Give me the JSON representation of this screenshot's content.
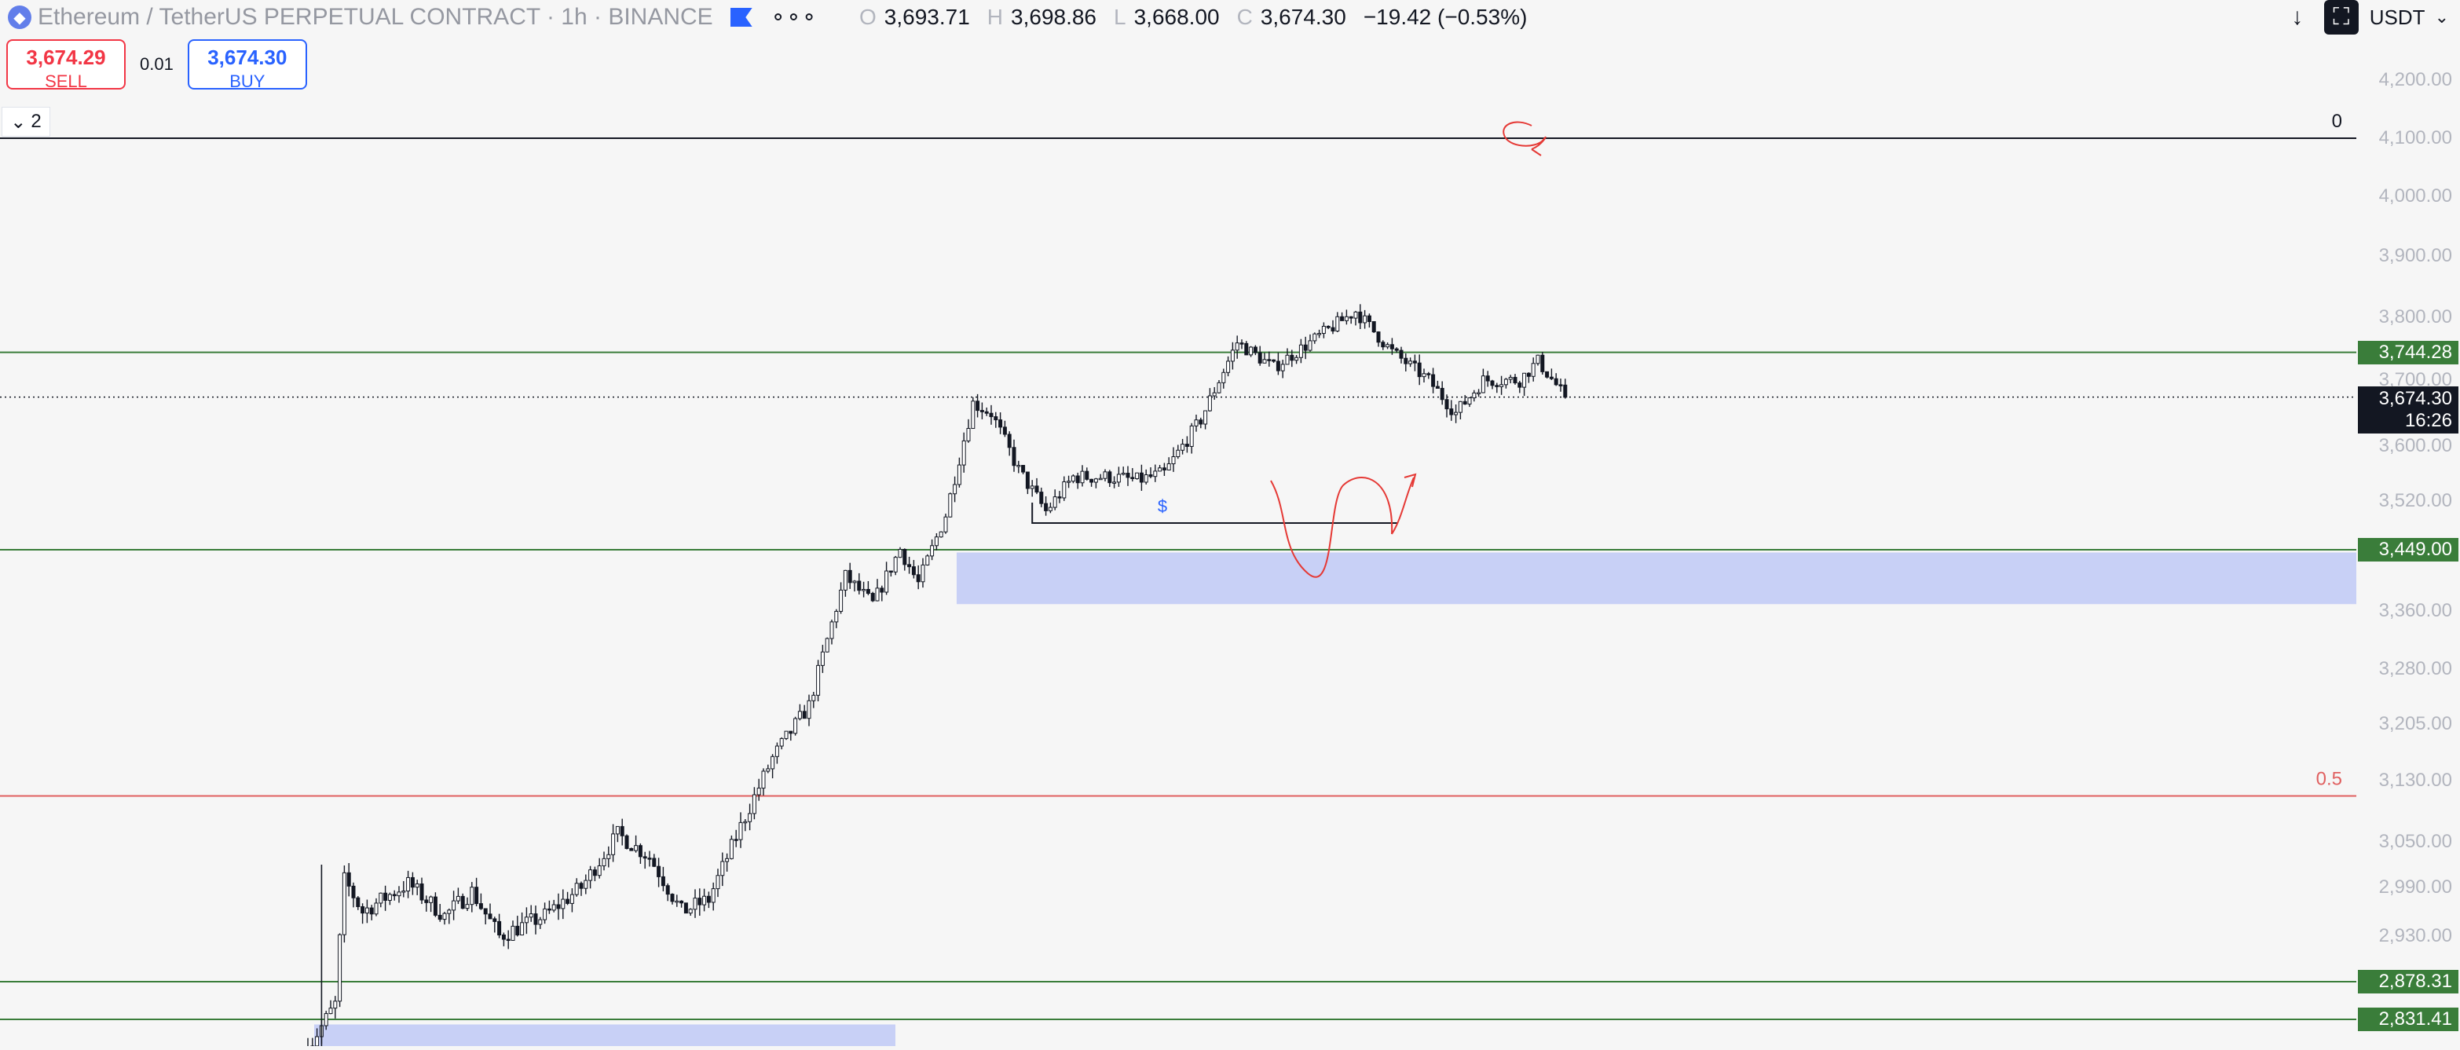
{
  "header": {
    "symbol_icon": "ethereum-icon",
    "title": "Ethereum / TetherUS PERPETUAL CONTRACT · 1h · BINANCE",
    "ohlc": [
      {
        "k": "O",
        "v": "3,693.71"
      },
      {
        "k": "H",
        "v": "3,698.86"
      },
      {
        "k": "L",
        "v": "3,668.00"
      },
      {
        "k": "C",
        "v": "3,674.30"
      }
    ],
    "change": "−19.42 (−0.53%)",
    "currency": "USDT"
  },
  "trade": {
    "sell_price": "3,674.29",
    "sell_label": "SELL",
    "spread": "0.01",
    "buy_price": "3,674.30",
    "buy_label": "BUY"
  },
  "layers_count": "2",
  "colors": {
    "up_green": "#3a7d3a",
    "zone_blue": "#c5cef5",
    "fib_red": "#e06060",
    "draw_red": "#e53935"
  },
  "chart_data": {
    "type": "candlestick",
    "yticks": [
      "4,200.00",
      "4,100.00",
      "4,000.00",
      "3,900.00",
      "3,800.00",
      "3,700.00",
      "3,600.00",
      "3,520.00",
      "3,360.00",
      "3,280.00",
      "3,205.00",
      "3,130.00",
      "3,050.00",
      "2,990.00",
      "2,930.00"
    ],
    "ytick_values": [
      4200,
      4100,
      4000,
      3900,
      3800,
      3700,
      3600,
      3520,
      3360,
      3280,
      3205,
      3130,
      3050,
      2990,
      2930
    ],
    "current_price": {
      "value": 3674.3,
      "label": "3,674.30",
      "countdown": "16:26"
    },
    "horizontal_levels": [
      {
        "value": 3744.28,
        "label": "3,744.28",
        "color": "green"
      },
      {
        "value": 3449.0,
        "label": "3,449.00",
        "color": "green"
      },
      {
        "value": 2878.31,
        "label": "2,878.31",
        "color": "green"
      },
      {
        "value": 2831.41,
        "label": "2,831.41",
        "color": "green"
      }
    ],
    "fib_levels": [
      {
        "value": 4100,
        "label": "0",
        "color": "#131722"
      },
      {
        "value": 3110,
        "label": "0.5",
        "color": "#e06060"
      }
    ],
    "zones": [
      {
        "top": 3445,
        "bottom": 3370
      },
      {
        "top": 2825,
        "bottom": 2790
      }
    ],
    "liquidity_marker": {
      "value": 3488,
      "label": "$"
    },
    "anchors": [
      {
        "t": 0,
        "v": 2795
      },
      {
        "t": 6,
        "v": 2850
      },
      {
        "t": 8,
        "v": 3000
      },
      {
        "t": 12,
        "v": 2960
      },
      {
        "t": 22,
        "v": 2995
      },
      {
        "t": 30,
        "v": 2955
      },
      {
        "t": 36,
        "v": 2985
      },
      {
        "t": 42,
        "v": 2930
      },
      {
        "t": 52,
        "v": 2955
      },
      {
        "t": 60,
        "v": 2990
      },
      {
        "t": 68,
        "v": 3060
      },
      {
        "t": 75,
        "v": 3030
      },
      {
        "t": 82,
        "v": 2960
      },
      {
        "t": 88,
        "v": 2975
      },
      {
        "t": 95,
        "v": 3070
      },
      {
        "t": 102,
        "v": 3160
      },
      {
        "t": 110,
        "v": 3230
      },
      {
        "t": 118,
        "v": 3410
      },
      {
        "t": 124,
        "v": 3370
      },
      {
        "t": 130,
        "v": 3450
      },
      {
        "t": 134,
        "v": 3400
      },
      {
        "t": 140,
        "v": 3500
      },
      {
        "t": 146,
        "v": 3665
      },
      {
        "t": 150,
        "v": 3650
      },
      {
        "t": 156,
        "v": 3565
      },
      {
        "t": 162,
        "v": 3505
      },
      {
        "t": 168,
        "v": 3555
      },
      {
        "t": 176,
        "v": 3555
      },
      {
        "t": 182,
        "v": 3550
      },
      {
        "t": 188,
        "v": 3560
      },
      {
        "t": 196,
        "v": 3640
      },
      {
        "t": 204,
        "v": 3760
      },
      {
        "t": 212,
        "v": 3720
      },
      {
        "t": 220,
        "v": 3760
      },
      {
        "t": 230,
        "v": 3810
      },
      {
        "t": 238,
        "v": 3745
      },
      {
        "t": 246,
        "v": 3700
      },
      {
        "t": 252,
        "v": 3650
      },
      {
        "t": 258,
        "v": 3700
      },
      {
        "t": 266,
        "v": 3700
      },
      {
        "t": 270,
        "v": 3730
      },
      {
        "t": 276,
        "v": 3674
      }
    ]
  }
}
